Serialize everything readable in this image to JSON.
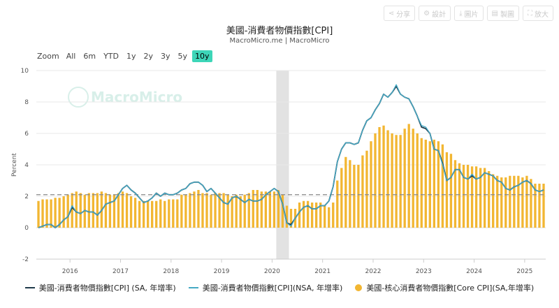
{
  "toolbar": {
    "buttons": [
      {
        "icon": "share-icon",
        "glyph": "⋖",
        "label": "分享"
      },
      {
        "icon": "settings-icon",
        "glyph": "⚙",
        "label": "設計"
      },
      {
        "icon": "download-icon",
        "glyph": "⤓",
        "label": "圖片"
      },
      {
        "icon": "table-icon",
        "glyph": "▤",
        "label": "製圖"
      },
      {
        "icon": "expand-icon",
        "glyph": "⛶",
        "label": "放大"
      }
    ]
  },
  "zoom": {
    "label": "Zoom",
    "options": [
      "All",
      "6m",
      "YTD",
      "1y",
      "2y",
      "3y",
      "5y",
      "10y"
    ],
    "active": "10y"
  },
  "watermark": "MacroMicro",
  "colors": {
    "sa_line": "#1f3a4a",
    "nsa_line": "#45a9c4",
    "core_bar": "#f2b632",
    "ref_line": "#888888",
    "shade": "#e2e2e2",
    "zoom_active": "#3dd6b8"
  },
  "chart_data": {
    "type": "bar",
    "title": "美國-消費者物價指數[CPI]",
    "subtitle": "MacroMicro.me | MacroMicro",
    "ylabel": "Percent",
    "ylim": [
      -2,
      10
    ],
    "yticks": [
      -2,
      0,
      2,
      4,
      6,
      8,
      10
    ],
    "xlim": [
      "2015-05",
      "2025-06"
    ],
    "xticks": [
      "2016",
      "2017",
      "2018",
      "2019",
      "2020",
      "2021",
      "2022",
      "2023",
      "2024",
      "2025"
    ],
    "reference_line": 2.1,
    "shaded_period": [
      "2020-02",
      "2020-04"
    ],
    "legend_position": "bottom",
    "x": [
      "2015-05",
      "2015-06",
      "2015-07",
      "2015-08",
      "2015-09",
      "2015-10",
      "2015-11",
      "2015-12",
      "2016-01",
      "2016-02",
      "2016-03",
      "2016-04",
      "2016-05",
      "2016-06",
      "2016-07",
      "2016-08",
      "2016-09",
      "2016-10",
      "2016-11",
      "2016-12",
      "2017-01",
      "2017-02",
      "2017-03",
      "2017-04",
      "2017-05",
      "2017-06",
      "2017-07",
      "2017-08",
      "2017-09",
      "2017-10",
      "2017-11",
      "2017-12",
      "2018-01",
      "2018-02",
      "2018-03",
      "2018-04",
      "2018-05",
      "2018-06",
      "2018-07",
      "2018-08",
      "2018-09",
      "2018-10",
      "2018-11",
      "2018-12",
      "2019-01",
      "2019-02",
      "2019-03",
      "2019-04",
      "2019-05",
      "2019-06",
      "2019-07",
      "2019-08",
      "2019-09",
      "2019-10",
      "2019-11",
      "2019-12",
      "2020-01",
      "2020-02",
      "2020-03",
      "2020-04",
      "2020-05",
      "2020-06",
      "2020-07",
      "2020-08",
      "2020-09",
      "2020-10",
      "2020-11",
      "2020-12",
      "2021-01",
      "2021-02",
      "2021-03",
      "2021-04",
      "2021-05",
      "2021-06",
      "2021-07",
      "2021-08",
      "2021-09",
      "2021-10",
      "2021-11",
      "2021-12",
      "2022-01",
      "2022-02",
      "2022-03",
      "2022-04",
      "2022-05",
      "2022-06",
      "2022-07",
      "2022-08",
      "2022-09",
      "2022-10",
      "2022-11",
      "2022-12",
      "2023-01",
      "2023-02",
      "2023-03",
      "2023-04",
      "2023-05",
      "2023-06",
      "2023-07",
      "2023-08",
      "2023-09",
      "2023-10",
      "2023-11",
      "2023-12",
      "2024-01",
      "2024-02",
      "2024-03",
      "2024-04",
      "2024-05",
      "2024-06",
      "2024-07",
      "2024-08",
      "2024-09",
      "2024-10",
      "2024-11",
      "2024-12",
      "2025-01",
      "2025-02",
      "2025-03",
      "2025-04",
      "2025-05"
    ],
    "series": [
      {
        "name": "美國-消費者物價指數[CPI] (SA, 年增率)",
        "kind": "line",
        "values": [
          0.0,
          0.1,
          0.2,
          0.2,
          0.0,
          0.2,
          0.5,
          0.7,
          1.3,
          1.0,
          0.9,
          1.1,
          1.0,
          1.0,
          0.8,
          1.1,
          1.5,
          1.6,
          1.7,
          2.1,
          2.5,
          2.7,
          2.4,
          2.2,
          1.9,
          1.6,
          1.7,
          1.9,
          2.2,
          2.0,
          2.2,
          2.1,
          2.1,
          2.2,
          2.4,
          2.5,
          2.8,
          2.9,
          2.9,
          2.7,
          2.3,
          2.5,
          2.2,
          1.9,
          1.6,
          1.5,
          1.9,
          2.0,
          1.8,
          1.6,
          1.8,
          1.7,
          1.7,
          1.8,
          2.1,
          2.3,
          2.5,
          2.3,
          1.5,
          0.3,
          0.2,
          0.6,
          1.0,
          1.3,
          1.4,
          1.2,
          1.2,
          1.4,
          1.4,
          1.7,
          2.6,
          4.2,
          5.0,
          5.4,
          5.4,
          5.3,
          5.4,
          6.2,
          6.8,
          7.0,
          7.5,
          7.9,
          8.5,
          8.3,
          8.6,
          9.0,
          8.5,
          8.3,
          8.2,
          7.7,
          7.1,
          6.4,
          6.3,
          6.0,
          5.0,
          4.9,
          4.1,
          3.0,
          3.2,
          3.7,
          3.7,
          3.2,
          3.1,
          3.3,
          3.1,
          3.2,
          3.5,
          3.4,
          3.3,
          3.0,
          2.9,
          2.5,
          2.4,
          2.6,
          2.7,
          2.9,
          3.0,
          2.8,
          2.4,
          2.3,
          2.4
        ]
      },
      {
        "name": "美國-消費者物價指數[CPI](NSA, 年增率)",
        "kind": "line",
        "values": [
          0.0,
          0.1,
          0.2,
          0.2,
          0.0,
          0.2,
          0.5,
          0.7,
          1.4,
          1.0,
          0.9,
          1.1,
          1.0,
          1.0,
          0.8,
          1.1,
          1.5,
          1.6,
          1.7,
          2.1,
          2.5,
          2.7,
          2.4,
          2.2,
          1.9,
          1.6,
          1.7,
          1.9,
          2.2,
          2.0,
          2.2,
          2.1,
          2.1,
          2.2,
          2.4,
          2.5,
          2.8,
          2.9,
          2.9,
          2.7,
          2.3,
          2.5,
          2.2,
          1.9,
          1.6,
          1.5,
          1.9,
          2.0,
          1.8,
          1.6,
          1.8,
          1.7,
          1.7,
          1.8,
          2.1,
          2.3,
          2.5,
          2.3,
          1.5,
          0.3,
          0.1,
          0.6,
          1.0,
          1.3,
          1.4,
          1.2,
          1.2,
          1.4,
          1.4,
          1.7,
          2.6,
          4.2,
          5.0,
          5.4,
          5.4,
          5.3,
          5.4,
          6.2,
          6.8,
          7.0,
          7.5,
          7.9,
          8.5,
          8.3,
          8.6,
          9.1,
          8.5,
          8.3,
          8.2,
          7.7,
          7.1,
          6.5,
          6.4,
          6.0,
          5.0,
          4.9,
          4.0,
          3.0,
          3.2,
          3.7,
          3.7,
          3.2,
          3.1,
          3.4,
          3.1,
          3.2,
          3.5,
          3.4,
          3.3,
          3.0,
          2.9,
          2.5,
          2.4,
          2.6,
          2.7,
          2.9,
          3.0,
          2.8,
          2.4,
          2.3,
          2.4
        ]
      },
      {
        "name": "美國-核心消費者物價指數[Core CPI](SA,年增率)",
        "kind": "bar",
        "values": [
          1.7,
          1.8,
          1.8,
          1.8,
          1.9,
          1.9,
          2.0,
          2.1,
          2.2,
          2.3,
          2.2,
          2.1,
          2.2,
          2.2,
          2.2,
          2.3,
          2.2,
          2.1,
          2.1,
          2.2,
          2.3,
          2.2,
          2.0,
          1.9,
          1.7,
          1.7,
          1.7,
          1.7,
          1.7,
          1.8,
          1.7,
          1.8,
          1.8,
          1.8,
          2.1,
          2.1,
          2.2,
          2.3,
          2.4,
          2.2,
          2.2,
          2.1,
          2.2,
          2.2,
          2.2,
          2.1,
          2.0,
          2.1,
          2.0,
          2.1,
          2.2,
          2.4,
          2.4,
          2.3,
          2.3,
          2.3,
          2.3,
          2.4,
          2.1,
          1.4,
          1.2,
          1.2,
          1.6,
          1.7,
          1.7,
          1.6,
          1.6,
          1.6,
          1.4,
          1.3,
          1.6,
          3.0,
          3.8,
          4.5,
          4.3,
          4.0,
          4.0,
          4.6,
          4.9,
          5.5,
          6.0,
          6.4,
          6.5,
          6.2,
          6.0,
          5.9,
          5.9,
          6.3,
          6.6,
          6.3,
          6.0,
          5.7,
          5.6,
          5.5,
          5.6,
          5.5,
          5.3,
          4.8,
          4.7,
          4.3,
          4.1,
          4.0,
          4.0,
          3.9,
          3.9,
          3.8,
          3.8,
          3.6,
          3.4,
          3.3,
          3.2,
          3.2,
          3.3,
          3.3,
          3.3,
          3.2,
          3.3,
          3.1,
          2.8,
          2.8,
          2.8
        ]
      }
    ]
  }
}
